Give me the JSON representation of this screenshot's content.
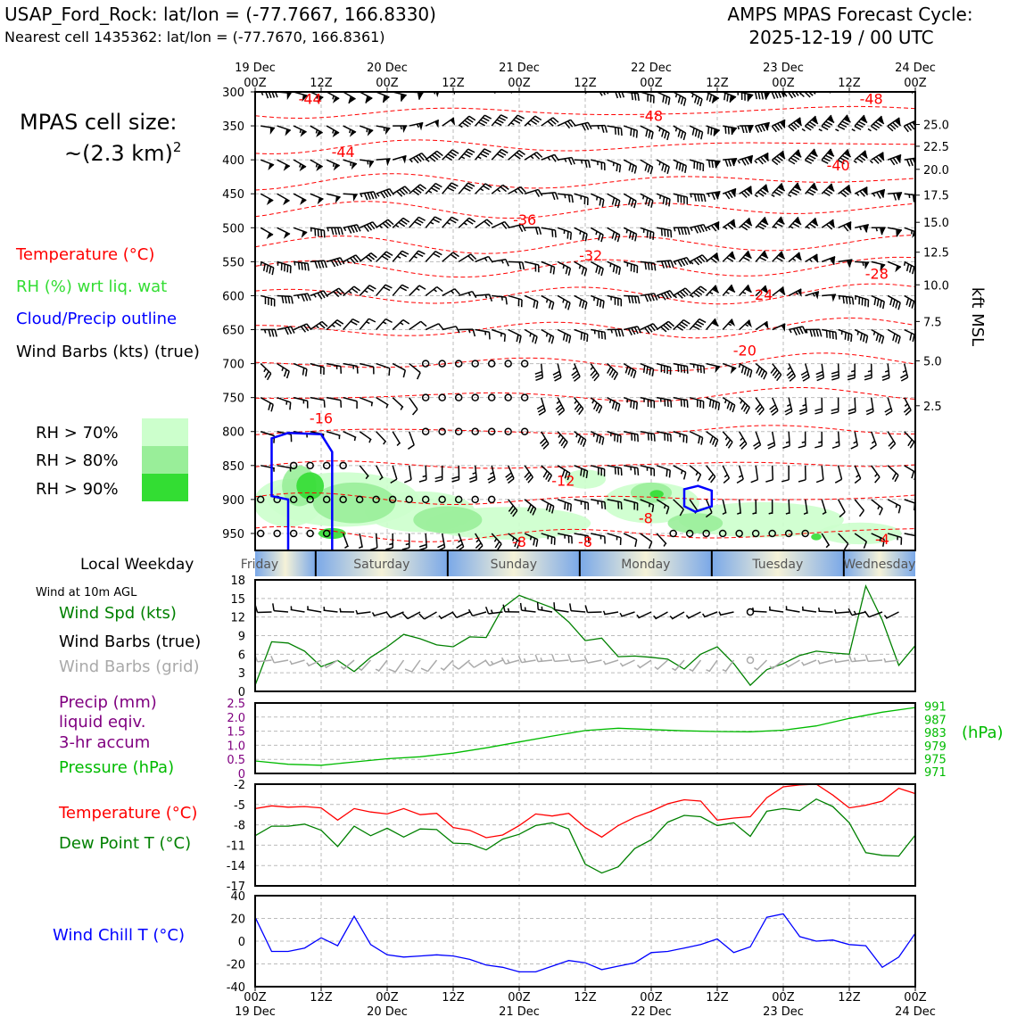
{
  "header": {
    "station": "USAP_Ford_Rock: lat/lon = (-77.7667, 166.8330)",
    "nearest": "Nearest cell 1435362: lat/lon = (-77.7670, 166.8361)",
    "cycle_title": "AMPS MPAS Forecast Cycle:",
    "cycle_date": "2025-12-19 / 00 UTC"
  },
  "side": {
    "cell_size_label": "MPAS cell size:",
    "cell_size_value": "~(2.3 km)",
    "cell_size_exp": "2",
    "legend_temp": "Temperature (°C)",
    "legend_rh": "RH (%) wrt liq. wat",
    "legend_cloud": "Cloud/Precip outline",
    "legend_wind": "Wind Barbs (kts) (true)",
    "rh70": "RH > 70%",
    "rh80": "RH > 80%",
    "rh90": "RH > 90%",
    "local_weekday": "Local Weekday",
    "wind10m": "Wind at 10m AGL",
    "wind_spd": "Wind Spd (kts)",
    "wind_barbs_true": "Wind Barbs (true)",
    "wind_barbs_grid": "Wind Barbs (grid)",
    "precip1": "Precip (mm)",
    "precip2": "liquid eqiv.",
    "precip3": "3-hr accum",
    "pressure": "Pressure (hPa)",
    "pressure_unit": "(hPa)",
    "temp": "Temperature (°C)",
    "dew": "Dew Point T (°C)",
    "wind_chill": "Wind Chill T (°C)",
    "kft": "kft MSL"
  },
  "colors": {
    "temp": "#ff0000",
    "rh_light": "#ccffcc",
    "rh_mid": "#99ee99",
    "rh_dark": "#33dd33",
    "dew": "#008000",
    "pressure": "#00bb00",
    "precip": "#800080",
    "windchill": "#0000ff",
    "grid_barb": "#aaaaaa"
  },
  "chart_data": [
    {
      "type": "heatmap",
      "title": "Vertical cross-section",
      "top_ticks": [
        {
          "time": "00Z",
          "date": "19 Dec"
        },
        {
          "time": "12Z",
          "date": ""
        },
        {
          "time": "00Z",
          "date": "20 Dec"
        },
        {
          "time": "12Z",
          "date": ""
        },
        {
          "time": "00Z",
          "date": "21 Dec"
        },
        {
          "time": "12Z",
          "date": ""
        },
        {
          "time": "00Z",
          "date": "22 Dec"
        },
        {
          "time": "12Z",
          "date": ""
        },
        {
          "time": "00Z",
          "date": "23 Dec"
        },
        {
          "time": "12Z",
          "date": ""
        },
        {
          "time": "00Z",
          "date": "24 Dec"
        }
      ],
      "pressure_levels": [
        "300",
        "350",
        "400",
        "450",
        "500",
        "550",
        "600",
        "650",
        "700",
        "750",
        "800",
        "850",
        "900",
        "950"
      ],
      "ylim": [
        300,
        975
      ],
      "kft_ticks": [
        "25.0",
        "22.5",
        "20.0",
        "17.5",
        "15.0",
        "12.5",
        "10.0",
        "7.5",
        "5.0",
        "2.5"
      ],
      "kft_levels": [
        348,
        380,
        414,
        452,
        492,
        536,
        584,
        638,
        696,
        762
      ],
      "temp_labels": [
        {
          "h": 10,
          "p": 310,
          "v": "-44"
        },
        {
          "h": 16,
          "p": 388,
          "v": "-44"
        },
        {
          "h": 72,
          "p": 335,
          "v": "-48"
        },
        {
          "h": 112,
          "p": 310,
          "v": "-48"
        },
        {
          "h": 106,
          "p": 408,
          "v": "-40"
        },
        {
          "h": 49,
          "p": 488,
          "v": "-36"
        },
        {
          "h": 61,
          "p": 540,
          "v": "-32"
        },
        {
          "h": 113,
          "p": 567,
          "v": "-28"
        },
        {
          "h": 92,
          "p": 598,
          "v": "-24"
        },
        {
          "h": 89,
          "p": 680,
          "v": "-20"
        },
        {
          "h": 12,
          "p": 780,
          "v": "-16"
        },
        {
          "h": 56,
          "p": 872,
          "v": "-12"
        },
        {
          "h": 71,
          "p": 927,
          "v": "-8"
        },
        {
          "h": 48,
          "p": 962,
          "v": "-8"
        },
        {
          "h": 60,
          "p": 962,
          "v": "-8"
        },
        {
          "h": 114,
          "p": 958,
          "v": "-4"
        }
      ]
    },
    {
      "type": "line",
      "title": "Wind at 10m AGL",
      "x_hours": [
        0,
        3,
        6,
        9,
        12,
        15,
        18,
        21,
        24,
        27,
        30,
        33,
        36,
        39,
        42,
        45,
        48,
        51,
        54,
        57,
        60,
        63,
        66,
        69,
        72,
        75,
        78,
        81,
        84,
        87,
        90,
        93,
        96,
        99,
        102,
        105,
        108,
        111,
        114,
        117,
        120
      ],
      "series": [
        {
          "name": "Wind Spd (kts)",
          "values": [
            1,
            8,
            7.8,
            6.5,
            4,
            5,
            3.2,
            5.5,
            7.2,
            9.2,
            8.5,
            7.5,
            7.2,
            8.8,
            8.7,
            13.5,
            15.5,
            14.5,
            13.5,
            11.2,
            8.2,
            8.6,
            5.6,
            5.7,
            5.5,
            5.2,
            3.6,
            6,
            7.2,
            4.5,
            1,
            3.5,
            4.5,
            5.8,
            6.5,
            6.2,
            6,
            17,
            11.5,
            4.2,
            7.4
          ]
        }
      ],
      "yticks": [
        "0",
        "3",
        "6",
        "9",
        "12",
        "15",
        "18"
      ],
      "ylim": [
        0,
        18
      ]
    },
    {
      "type": "line",
      "title": "Precip and Pressure",
      "x_hours": [
        0,
        6,
        12,
        18,
        24,
        30,
        36,
        42,
        48,
        54,
        60,
        66,
        72,
        78,
        84,
        90,
        96,
        102,
        108,
        114,
        120
      ],
      "series": [
        {
          "name": "Precip (mm)",
          "values": [
            0,
            0,
            0,
            0,
            0,
            0,
            0,
            0,
            0,
            0,
            0,
            0,
            0,
            0,
            0,
            0,
            0,
            0,
            0,
            0,
            0
          ]
        },
        {
          "name": "Pressure (hPa)",
          "values": [
            974.3,
            973.3,
            973.0,
            974.0,
            975.0,
            975.6,
            976.7,
            978.3,
            980.1,
            981.9,
            983.6,
            984.3,
            983.9,
            983.5,
            983.3,
            983.2,
            983.7,
            985.0,
            987.3,
            989.2,
            990.6
          ]
        }
      ],
      "precip_ticks": [
        "2.5",
        "2.0",
        "1.5",
        "1.0",
        "0.5",
        "0"
      ],
      "precip_ylim": [
        0,
        2.5
      ],
      "pressure_ticks": [
        "991",
        "987",
        "983",
        "979",
        "975",
        "971"
      ],
      "pressure_ylim": [
        970.5,
        992
      ]
    },
    {
      "type": "line",
      "title": "Temperature and Dew Point",
      "x_hours": [
        0,
        3,
        6,
        9,
        12,
        15,
        18,
        21,
        24,
        27,
        30,
        33,
        36,
        39,
        42,
        45,
        48,
        51,
        54,
        57,
        60,
        63,
        66,
        69,
        72,
        75,
        78,
        81,
        84,
        87,
        90,
        93,
        96,
        99,
        102,
        105,
        108,
        111,
        114,
        117,
        120
      ],
      "series": [
        {
          "name": "Temperature (°C)",
          "values": [
            -5.6,
            -5.2,
            -5.4,
            -5.3,
            -5.5,
            -7.3,
            -5.6,
            -6.1,
            -6.4,
            -5.6,
            -6.5,
            -6.3,
            -8.4,
            -8.8,
            -9.9,
            -9.5,
            -8.1,
            -6.4,
            -6.7,
            -6.3,
            -8.4,
            -9.8,
            -8.1,
            -6.9,
            -6.0,
            -4.9,
            -4.3,
            -4.5,
            -7.3,
            -7.0,
            -6.8,
            -4.0,
            -2.4,
            -2.1,
            -2.0,
            -3.6,
            -5.5,
            -5.1,
            -4.5,
            -2.6,
            -3.4
          ]
        },
        {
          "name": "Dew Point T (°C)",
          "values": [
            -9.6,
            -8.2,
            -8.2,
            -7.9,
            -8.8,
            -11.2,
            -8.2,
            -9.6,
            -8.5,
            -9.8,
            -8.6,
            -8.7,
            -10.7,
            -10.8,
            -11.7,
            -10.1,
            -9.4,
            -8.1,
            -7.7,
            -8.6,
            -13.8,
            -15.1,
            -14.2,
            -11.5,
            -10.2,
            -7.6,
            -6.6,
            -6.8,
            -8.1,
            -7.7,
            -9.7,
            -6.0,
            -5.6,
            -5.9,
            -4.2,
            -5.3,
            -7.7,
            -12.1,
            -12.5,
            -12.6,
            -9.5
          ]
        }
      ],
      "yticks": [
        "-2",
        "-5",
        "-8",
        "-11",
        "-14",
        "-17"
      ],
      "ylim": [
        -17,
        -2
      ]
    },
    {
      "type": "line",
      "title": "Wind Chill",
      "x_hours": [
        0,
        3,
        6,
        9,
        12,
        15,
        18,
        21,
        24,
        27,
        30,
        33,
        36,
        39,
        42,
        45,
        48,
        51,
        54,
        57,
        60,
        63,
        66,
        69,
        72,
        75,
        78,
        81,
        84,
        87,
        90,
        93,
        96,
        99,
        102,
        105,
        108,
        111,
        114,
        117,
        120
      ],
      "series": [
        {
          "name": "Wind Chill T (°C)",
          "values": [
            21,
            -9,
            -9,
            -6,
            3,
            -4,
            22,
            -3,
            -12,
            -14,
            -13,
            -12,
            -13,
            -16,
            -21,
            -23,
            -27,
            -27,
            -22,
            -17,
            -19,
            -25,
            -22,
            -19,
            -10,
            -9,
            -6,
            -3,
            2,
            -10,
            -5,
            21,
            24,
            4,
            0,
            1,
            -3,
            -4,
            -23,
            -14,
            7
          ]
        }
      ],
      "yticks": [
        "40",
        "20",
        "0",
        "-20",
        "-40"
      ],
      "ylim": [
        -40,
        40
      ]
    }
  ],
  "weekdays": [
    "Friday",
    "Saturday",
    "Sunday",
    "Monday",
    "Tuesday",
    "Wednesday"
  ],
  "bottom_ticks": [
    {
      "time": "00Z",
      "date": "19 Dec"
    },
    {
      "time": "12Z",
      "date": ""
    },
    {
      "time": "00Z",
      "date": "20 Dec"
    },
    {
      "time": "12Z",
      "date": ""
    },
    {
      "time": "00Z",
      "date": "21 Dec"
    },
    {
      "time": "12Z",
      "date": ""
    },
    {
      "time": "00Z",
      "date": "22 Dec"
    },
    {
      "time": "12Z",
      "date": ""
    },
    {
      "time": "00Z",
      "date": "23 Dec"
    },
    {
      "time": "12Z",
      "date": ""
    },
    {
      "time": "00Z",
      "date": "24 Dec"
    }
  ]
}
